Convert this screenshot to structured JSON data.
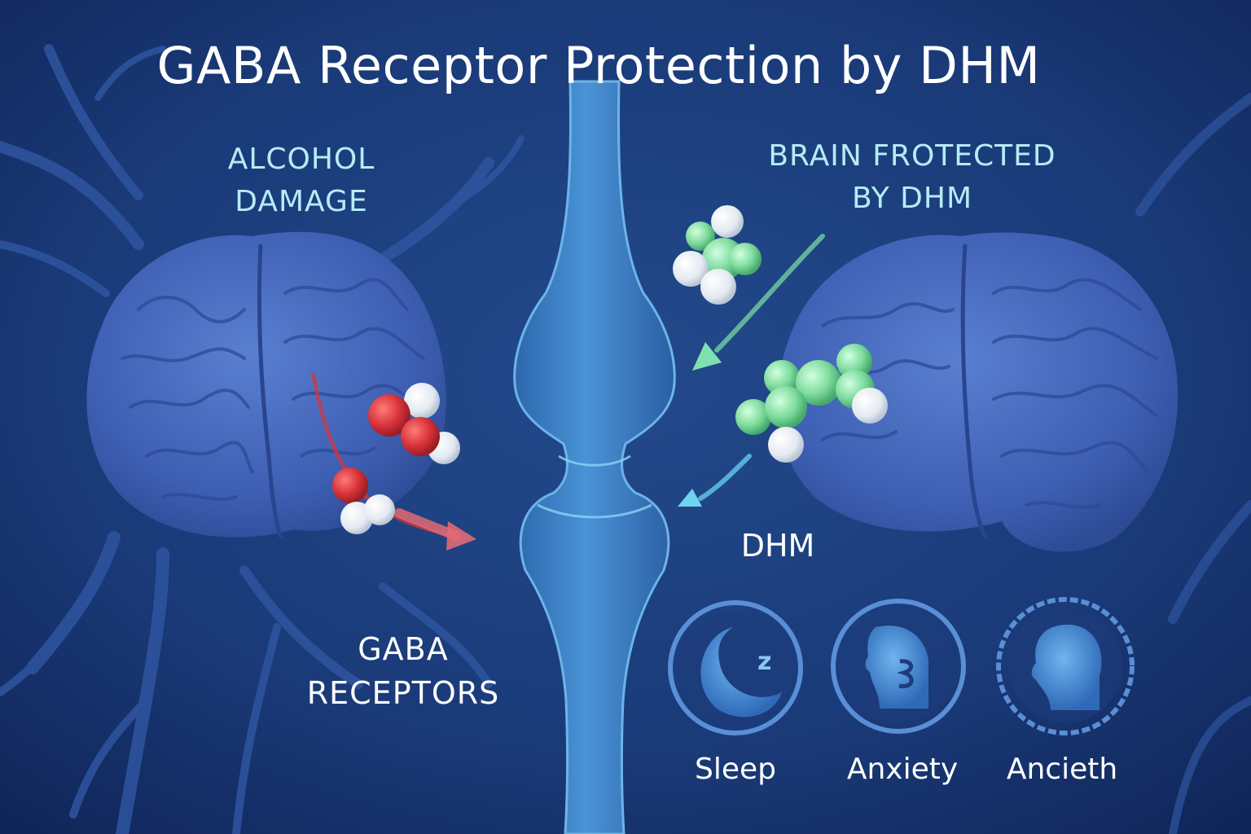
{
  "title": "GABA Receptor Protection by DHM",
  "alcohol_panel": {
    "heading_line1": "ALCOHOL",
    "heading_line2": "DAMAGE"
  },
  "protected_panel": {
    "heading_line1": "BRAIN FROTECTED",
    "heading_line2": "BY DHM"
  },
  "dhm_label": "DHM",
  "receptor_label": {
    "line1": "GABA",
    "line2": "RECEPTORS"
  },
  "benefits": [
    {
      "label": "Sleep",
      "icon": "moon-sleep-icon"
    },
    {
      "label": "Anxiety",
      "icon": "anxious-face-icon"
    },
    {
      "label": "Ancieth",
      "icon": "calm-head-icon"
    }
  ],
  "colors": {
    "background": "#1a3672",
    "alcohol_molecule": "#d8343a",
    "dhm_molecule": "#7fdc9e",
    "heading_text": "#b6ecf6",
    "neuron": "#3f83c7"
  }
}
